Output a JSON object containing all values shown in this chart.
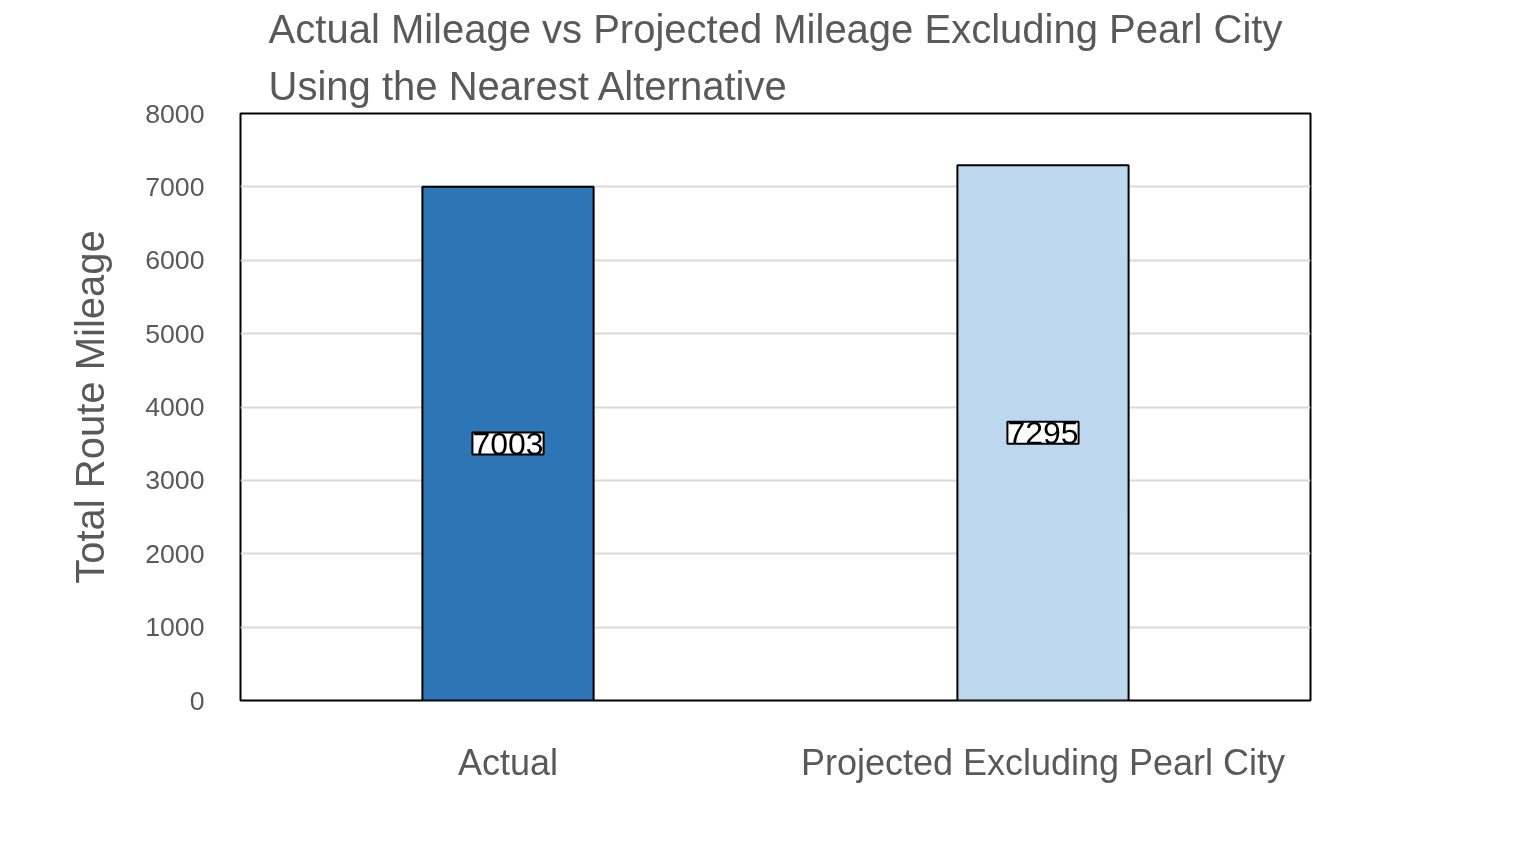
{
  "chart_data": {
    "type": "bar",
    "title": "Actual Mileage vs Projected Mileage Excluding Pearl City\nUsing the Nearest Alternative",
    "ylabel": "Total Route Mileage",
    "categories": [
      "Actual",
      "Projected Excluding Pearl City"
    ],
    "values": [
      7003,
      7295
    ],
    "colors": [
      "#2e75b6",
      "#bdd7ee"
    ],
    "ylim": [
      0,
      8000
    ],
    "yticks": [
      0,
      1000,
      2000,
      3000,
      4000,
      5000,
      6000,
      7000,
      8000
    ],
    "grid": "y",
    "data_labels": true
  }
}
